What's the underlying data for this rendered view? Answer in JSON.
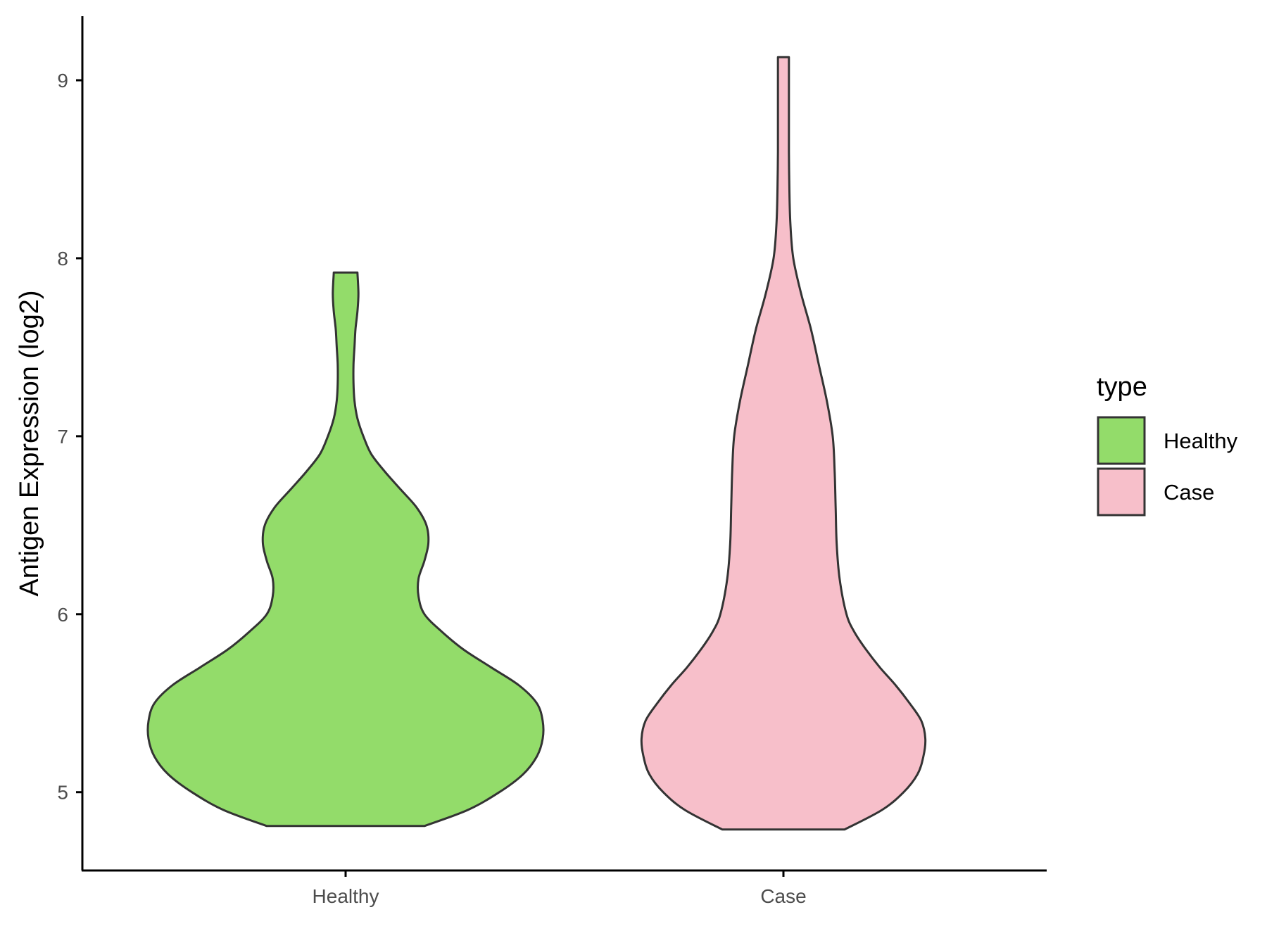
{
  "chart_data": {
    "type": "violin",
    "title": "",
    "xlabel": "",
    "ylabel": "Antigen Expression (log2)",
    "ylim": [
      4.56,
      9.36
    ],
    "yticks": [
      5,
      6,
      7,
      8,
      9
    ],
    "grid": false,
    "legend": {
      "title": "type",
      "position": "right",
      "entries": [
        {
          "label": "Healthy",
          "color": "#93dc6a"
        },
        {
          "label": "Case",
          "color": "#f7bfca"
        }
      ]
    },
    "categories": [
      "Healthy",
      "Case"
    ],
    "series": [
      {
        "name": "Healthy",
        "color": "#93dc6a",
        "min": 4.81,
        "max": 7.92,
        "density_profile": [
          [
            4.81,
            0.4
          ],
          [
            4.9,
            0.62
          ],
          [
            5.0,
            0.78
          ],
          [
            5.1,
            0.9
          ],
          [
            5.2,
            0.97
          ],
          [
            5.3,
            1.0
          ],
          [
            5.4,
            1.0
          ],
          [
            5.5,
            0.97
          ],
          [
            5.6,
            0.88
          ],
          [
            5.7,
            0.74
          ],
          [
            5.8,
            0.6
          ],
          [
            5.9,
            0.49
          ],
          [
            6.0,
            0.4
          ],
          [
            6.1,
            0.37
          ],
          [
            6.2,
            0.37
          ],
          [
            6.3,
            0.4
          ],
          [
            6.4,
            0.42
          ],
          [
            6.5,
            0.41
          ],
          [
            6.6,
            0.36
          ],
          [
            6.7,
            0.28
          ],
          [
            6.8,
            0.2
          ],
          [
            6.9,
            0.13
          ],
          [
            7.0,
            0.09
          ],
          [
            7.1,
            0.06
          ],
          [
            7.2,
            0.045
          ],
          [
            7.3,
            0.04
          ],
          [
            7.4,
            0.04
          ],
          [
            7.5,
            0.045
          ],
          [
            7.6,
            0.05
          ],
          [
            7.7,
            0.06
          ],
          [
            7.8,
            0.065
          ],
          [
            7.92,
            0.06
          ]
        ]
      },
      {
        "name": "Case",
        "color": "#f7bfca",
        "min": 4.79,
        "max": 9.13,
        "density_profile": [
          [
            4.79,
            0.31
          ],
          [
            4.9,
            0.5
          ],
          [
            5.0,
            0.61
          ],
          [
            5.1,
            0.68
          ],
          [
            5.2,
            0.71
          ],
          [
            5.3,
            0.72
          ],
          [
            5.4,
            0.7
          ],
          [
            5.5,
            0.64
          ],
          [
            5.6,
            0.57
          ],
          [
            5.7,
            0.49
          ],
          [
            5.8,
            0.42
          ],
          [
            5.9,
            0.36
          ],
          [
            6.0,
            0.32
          ],
          [
            6.2,
            0.285
          ],
          [
            6.4,
            0.27
          ],
          [
            6.6,
            0.265
          ],
          [
            6.8,
            0.26
          ],
          [
            7.0,
            0.25
          ],
          [
            7.2,
            0.22
          ],
          [
            7.4,
            0.18
          ],
          [
            7.6,
            0.14
          ],
          [
            7.8,
            0.09
          ],
          [
            8.0,
            0.05
          ],
          [
            8.2,
            0.035
          ],
          [
            8.4,
            0.03
          ],
          [
            8.6,
            0.028
          ],
          [
            8.8,
            0.028
          ],
          [
            9.0,
            0.028
          ],
          [
            9.13,
            0.028
          ]
        ]
      }
    ]
  }
}
